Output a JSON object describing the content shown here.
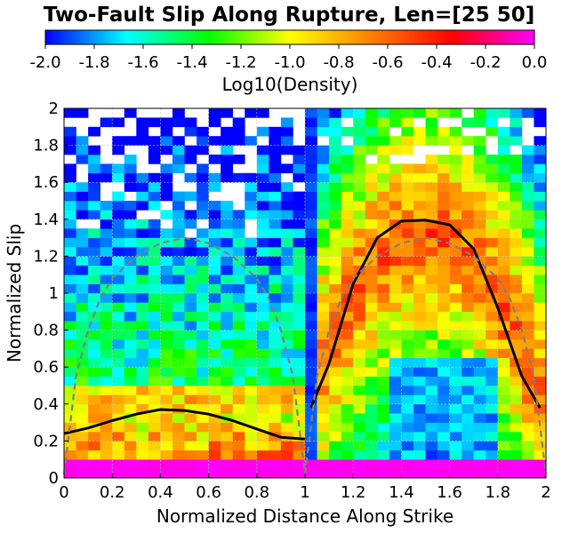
{
  "chart_data": {
    "type": "heatmap",
    "title": "Two-Fault Slip Along Rupture, Len=[25 50]",
    "xlabel": "Normalized Distance Along Strike",
    "ylabel": "Normalized Slip",
    "xlim": [
      0,
      2
    ],
    "ylim": [
      0,
      2
    ],
    "x_ticks": [
      "0",
      "0.2",
      "0.4",
      "0.6",
      "0.8",
      "1",
      "1.2",
      "1.4",
      "1.6",
      "1.8",
      "2"
    ],
    "y_ticks": [
      "0",
      "0.2",
      "0.4",
      "0.6",
      "0.8",
      "1",
      "1.2",
      "1.4",
      "1.6",
      "1.8",
      "2"
    ],
    "grid": true,
    "colorbar": {
      "label": "Log10(Density)",
      "range": [
        -2.0,
        0.0
      ],
      "ticks": [
        "-2.0",
        "-1.8",
        "-1.6",
        "-1.4",
        "-1.2",
        "-1.0",
        "-0.8",
        "-0.6",
        "-0.4",
        "-0.2",
        "0.0"
      ],
      "colors": [
        "#0000ff",
        "#00ffff",
        "#00ff00",
        "#ffff00",
        "#ff8000",
        "#ff0000",
        "#ff00ff"
      ]
    },
    "heatmap_grid": {
      "x_bins": 40,
      "y_bins": 40,
      "bin_width": 0.05
    },
    "series": [
      {
        "kind": "mean-slip",
        "color": "#000000",
        "segments": [
          {
            "x": [
              0.0,
              0.1,
              0.2,
              0.3,
              0.4,
              0.5,
              0.6,
              0.7,
              0.8,
              0.9,
              1.0
            ],
            "y": [
              0.24,
              0.27,
              0.31,
              0.345,
              0.37,
              0.365,
              0.345,
              0.31,
              0.265,
              0.22,
              0.21
            ]
          },
          {
            "x": [
              1.025,
              1.1,
              1.2,
              1.3,
              1.4,
              1.5,
              1.6,
              1.7,
              1.8,
              1.9,
              1.975
            ],
            "y": [
              0.38,
              0.62,
              1.05,
              1.3,
              1.39,
              1.395,
              1.37,
              1.24,
              0.92,
              0.55,
              0.38
            ]
          }
        ]
      },
      {
        "kind": "reference-profile",
        "color": "#808080",
        "segments": [
          {
            "x": [
              0.0,
              0.05,
              0.1,
              0.15,
              0.2,
              0.3,
              0.4,
              0.5,
              0.6,
              0.7,
              0.8,
              0.85,
              0.9,
              0.95,
              1.0
            ],
            "y": [
              0.02,
              0.55,
              0.8,
              0.97,
              1.08,
              1.2,
              1.27,
              1.3,
              1.27,
              1.2,
              1.08,
              0.97,
              0.8,
              0.55,
              0.02
            ]
          },
          {
            "x": [
              1.0,
              1.05,
              1.1,
              1.15,
              1.2,
              1.3,
              1.4,
              1.5,
              1.6,
              1.7,
              1.8,
              1.85,
              1.9,
              1.95,
              2.0
            ],
            "y": [
              0.02,
              0.55,
              0.8,
              0.97,
              1.08,
              1.2,
              1.27,
              1.3,
              1.27,
              1.2,
              1.08,
              0.97,
              0.8,
              0.55,
              0.02
            ]
          }
        ]
      }
    ]
  }
}
